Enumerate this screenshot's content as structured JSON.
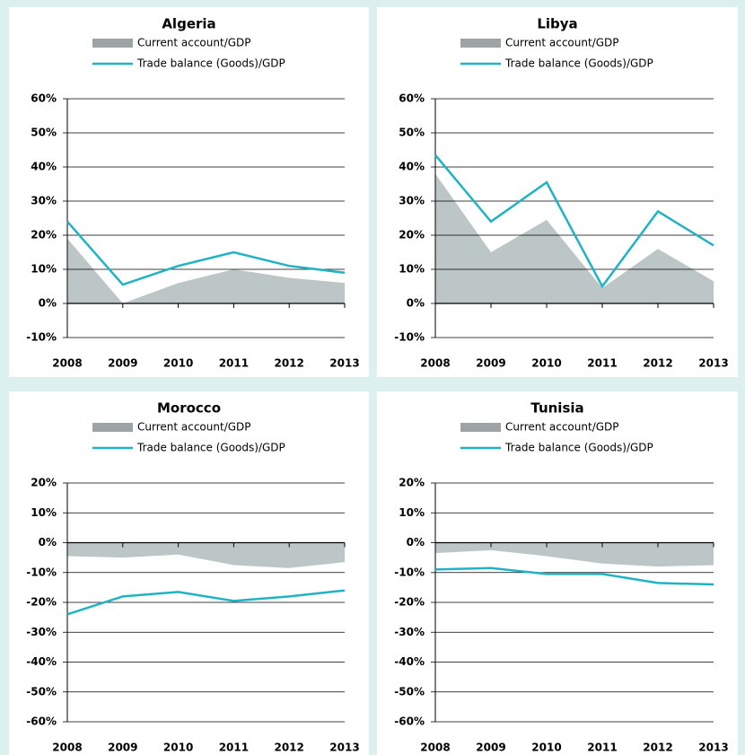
{
  "chart_data": [
    {
      "type": "area-line",
      "title": "Algeria",
      "categories": [
        "2008",
        "2009",
        "2010",
        "2011",
        "2012",
        "2013"
      ],
      "series": [
        {
          "name": "Current account/GDP",
          "style": "area",
          "color": "#bcc6c6",
          "legend_color": "#9ea4a6",
          "values": [
            19,
            0,
            6,
            10,
            7.5,
            6
          ]
        },
        {
          "name": "Trade balance (Goods)/GDP",
          "style": "line",
          "color": "#1fb3c3",
          "values": [
            24,
            5.5,
            11,
            15,
            11,
            9
          ]
        }
      ],
      "ylim": [
        -10,
        60
      ],
      "yticks": [
        {
          "value": -10,
          "label": "-10%"
        },
        {
          "value": 0,
          "label": "0%"
        },
        {
          "value": 10,
          "label": "10%"
        },
        {
          "value": 20,
          "label": "20%"
        },
        {
          "value": 30,
          "label": "30%"
        },
        {
          "value": 40,
          "label": "40%"
        },
        {
          "value": 50,
          "label": "50%"
        },
        {
          "value": 60,
          "label": "60%"
        }
      ],
      "grid": true
    },
    {
      "type": "area-line",
      "title": "Libya",
      "categories": [
        "2008",
        "2009",
        "2010",
        "2011",
        "2012",
        "2013"
      ],
      "series": [
        {
          "name": "Current account/GDP",
          "style": "area",
          "color": "#bcc6c6",
          "legend_color": "#9ea4a6",
          "values": [
            38,
            15,
            24.5,
            4.5,
            16,
            6.5
          ]
        },
        {
          "name": "Trade balance (Goods)/GDP",
          "style": "line",
          "color": "#1fb3c3",
          "values": [
            43.5,
            24,
            35.5,
            5,
            27,
            17
          ]
        }
      ],
      "ylim": [
        -10,
        60
      ],
      "yticks": [
        {
          "value": -10,
          "label": "-10%"
        },
        {
          "value": 0,
          "label": "0%"
        },
        {
          "value": 10,
          "label": "10%"
        },
        {
          "value": 20,
          "label": "20%"
        },
        {
          "value": 30,
          "label": "30%"
        },
        {
          "value": 40,
          "label": "40%"
        },
        {
          "value": 50,
          "label": "50%"
        },
        {
          "value": 60,
          "label": "60%"
        }
      ],
      "grid": true
    },
    {
      "type": "area-line",
      "title": "Morocco",
      "categories": [
        "2008",
        "2009",
        "2010",
        "2011",
        "2012",
        "2013"
      ],
      "series": [
        {
          "name": "Current account/GDP",
          "style": "area",
          "color": "#bcc6c6",
          "legend_color": "#9ea4a6",
          "values": [
            -4.5,
            -5,
            -4,
            -7.5,
            -8.5,
            -6.5
          ]
        },
        {
          "name": "Trade balance (Goods)/GDP",
          "style": "line",
          "color": "#1fb3c3",
          "values": [
            -24,
            -18,
            -16.5,
            -19.5,
            -18,
            -16
          ]
        }
      ],
      "ylim": [
        -60,
        20
      ],
      "yticks": [
        {
          "value": -60,
          "label": "-60%"
        },
        {
          "value": -50,
          "label": "-50%"
        },
        {
          "value": -40,
          "label": "-40%"
        },
        {
          "value": -30,
          "label": "-30%"
        },
        {
          "value": -20,
          "label": "-20%"
        },
        {
          "value": -10,
          "label": "-10%"
        },
        {
          "value": 0,
          "label": "0%"
        },
        {
          "value": 10,
          "label": "10%"
        },
        {
          "value": 20,
          "label": "20%"
        }
      ],
      "grid": true
    },
    {
      "type": "area-line",
      "title": "Tunisia",
      "categories": [
        "2008",
        "2009",
        "2010",
        "2011",
        "2012",
        "2013"
      ],
      "series": [
        {
          "name": "Current account/GDP",
          "style": "area",
          "color": "#bcc6c6",
          "legend_color": "#9ea4a6",
          "values": [
            -3.5,
            -2.5,
            -4.5,
            -7,
            -8,
            -7.5
          ]
        },
        {
          "name": "Trade balance (Goods)/GDP",
          "style": "line",
          "color": "#1fb3c3",
          "values": [
            -9,
            -8.5,
            -10.5,
            -10.5,
            -13.5,
            -14
          ]
        }
      ],
      "ylim": [
        -60,
        20
      ],
      "yticks": [
        {
          "value": -60,
          "label": "-60%"
        },
        {
          "value": -50,
          "label": "-50%"
        },
        {
          "value": -40,
          "label": "-40%"
        },
        {
          "value": -30,
          "label": "-30%"
        },
        {
          "value": -20,
          "label": "-20%"
        },
        {
          "value": -10,
          "label": "-10%"
        },
        {
          "value": 0,
          "label": "0%"
        },
        {
          "value": 10,
          "label": "10%"
        },
        {
          "value": 20,
          "label": "20%"
        }
      ],
      "grid": true
    }
  ]
}
